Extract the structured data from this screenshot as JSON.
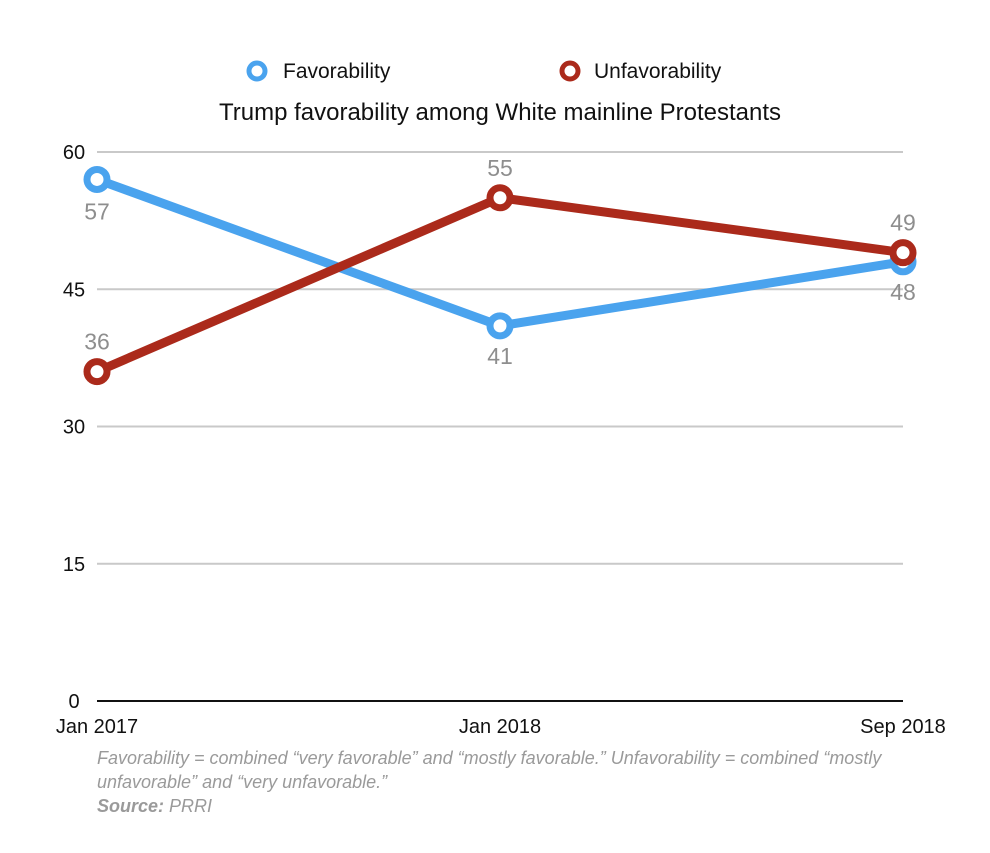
{
  "chart_data": {
    "type": "line",
    "title": "Trump favorability among White mainline Protestants",
    "categories": [
      "Jan 2017",
      "Jan 2018",
      "Sep 2018"
    ],
    "series": [
      {
        "name": "Favorability",
        "color": "#4aa3ee",
        "values": [
          57,
          41,
          48
        ]
      },
      {
        "name": "Unfavorability",
        "color": "#ab2a1b",
        "values": [
          36,
          55,
          49
        ]
      }
    ],
    "y_ticks": [
      0,
      15,
      30,
      45,
      60
    ],
    "ylim": [
      0,
      60
    ],
    "grid": true,
    "legend_position": "top-center"
  },
  "footnote": {
    "text": "Favorability = combined “very favorable” and “mostly favorable.” Unfavorability = combined “mostly unfavorable” and “very unfavorable.”",
    "source_label": "Source:",
    "source_value": "PRRI"
  }
}
